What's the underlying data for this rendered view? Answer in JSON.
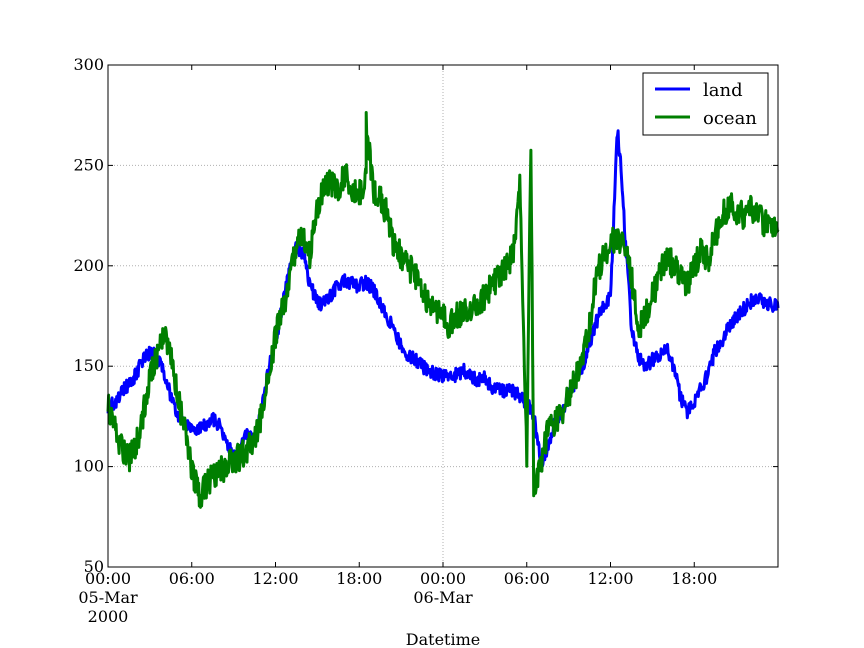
{
  "chart_data": {
    "type": "line",
    "title": "",
    "xlabel": "Datetime",
    "ylabel": "",
    "ylim": [
      50,
      300
    ],
    "yticks": [
      50,
      100,
      150,
      200,
      250,
      300
    ],
    "xlim_hours": [
      0,
      48
    ],
    "x_unit": "hours since 2000-03-05 00:00",
    "xticks": [
      {
        "hour": 0,
        "lines": [
          "00:00",
          "05-Mar",
          "2000"
        ]
      },
      {
        "hour": 6,
        "lines": [
          "06:00"
        ]
      },
      {
        "hour": 12,
        "lines": [
          "12:00"
        ]
      },
      {
        "hour": 18,
        "lines": [
          "18:00"
        ]
      },
      {
        "hour": 24,
        "lines": [
          "00:00",
          "06-Mar"
        ]
      },
      {
        "hour": 30,
        "lines": [
          "06:00"
        ]
      },
      {
        "hour": 36,
        "lines": [
          "12:00"
        ]
      },
      {
        "hour": 42,
        "lines": [
          "18:00"
        ]
      }
    ],
    "grid": true,
    "legend_position": "top-right",
    "series": [
      {
        "name": "land",
        "color": "#0000ff",
        "x": [
          0,
          0.5,
          1,
          1.5,
          2,
          2.5,
          3,
          3.5,
          4,
          4.5,
          5,
          5.5,
          6,
          6.5,
          7,
          7.5,
          8,
          8.5,
          9,
          9.5,
          10,
          10.5,
          11,
          11.5,
          12,
          12.5,
          13,
          13.5,
          14,
          14.5,
          15,
          15.5,
          16,
          16.5,
          17,
          17.5,
          18,
          18.5,
          19,
          19.5,
          20,
          20.5,
          21,
          21.5,
          22,
          22.5,
          23,
          23.5,
          24,
          24.5,
          25,
          25.5,
          26,
          26.5,
          27,
          27.5,
          28,
          28.5,
          29,
          29.5,
          30,
          30.5,
          31,
          31.5,
          32,
          32.5,
          33,
          33.5,
          34,
          34.5,
          35,
          35.5,
          36,
          36.5,
          37,
          37.5,
          38,
          38.5,
          39,
          39.5,
          40,
          40.5,
          41,
          41.5,
          42,
          42.5,
          43,
          43.5,
          44,
          44.5,
          45,
          45.5,
          46,
          46.5,
          47,
          47.5,
          48
        ],
        "values": [
          130,
          132,
          138,
          141,
          146,
          153,
          157,
          155,
          147,
          135,
          125,
          122,
          118,
          118,
          121,
          124,
          120,
          112,
          106,
          108,
          118,
          112,
          128,
          148,
          162,
          180,
          197,
          210,
          205,
          190,
          182,
          181,
          186,
          190,
          193,
          191,
          190,
          192,
          188,
          182,
          175,
          168,
          160,
          155,
          153,
          150,
          148,
          146,
          145,
          144,
          146,
          148,
          145,
          143,
          144,
          140,
          138,
          137,
          138,
          135,
          132,
          126,
          102,
          108,
          122,
          128,
          135,
          142,
          150,
          160,
          172,
          180,
          185,
          268,
          220,
          170,
          155,
          150,
          153,
          155,
          160,
          150,
          135,
          127,
          132,
          140,
          146,
          158,
          162,
          170,
          175,
          178,
          182,
          183,
          182,
          181,
          179
        ],
        "x_extra": [
          36.8
        ],
        "values_extra": [
          245
        ]
      },
      {
        "name": "ocean",
        "color": "#007f00",
        "x": [
          0,
          0.5,
          1,
          1.5,
          2,
          2.5,
          3,
          3.5,
          4,
          4.5,
          5,
          5.5,
          6,
          6.5,
          7,
          7.5,
          8,
          8.5,
          9,
          9.5,
          10,
          10.5,
          11,
          11.5,
          12,
          12.5,
          13,
          13.5,
          14,
          14.5,
          15,
          15.5,
          16,
          16.5,
          17,
          17.5,
          18,
          18.5,
          19,
          19.5,
          20,
          20.5,
          21,
          21.5,
          22,
          22.5,
          23,
          23.5,
          24,
          24.5,
          25,
          25.5,
          26,
          26.5,
          27,
          27.5,
          28,
          28.5,
          29,
          29.5,
          30,
          30.5,
          31,
          31.5,
          32,
          32.5,
          33,
          33.5,
          34,
          34.5,
          35,
          35.5,
          36,
          36.5,
          37,
          37.5,
          38,
          38.5,
          39,
          39.5,
          40,
          40.5,
          41,
          41.5,
          42,
          42.5,
          43,
          43.5,
          44,
          44.5,
          45,
          45.5,
          46,
          46.5,
          47,
          47.5,
          48
        ],
        "values": [
          130,
          118,
          108,
          104,
          110,
          125,
          145,
          155,
          168,
          155,
          135,
          118,
          100,
          85,
          90,
          95,
          98,
          100,
          103,
          105,
          108,
          115,
          125,
          145,
          165,
          178,
          192,
          210,
          215,
          205,
          230,
          240,
          242,
          238,
          245,
          238,
          236,
          242,
          238,
          235,
          225,
          210,
          205,
          200,
          195,
          188,
          182,
          178,
          175,
          170,
          175,
          178,
          180,
          182,
          185,
          190,
          195,
          200,
          205,
          240,
          105,
          88,
          100,
          118,
          122,
          125,
          135,
          145,
          155,
          170,
          195,
          205,
          212,
          215,
          210,
          195,
          170,
          175,
          185,
          195,
          205,
          200,
          195,
          190,
          200,
          208,
          203,
          215,
          225,
          230,
          228,
          225,
          230,
          225,
          222,
          220,
          218
        ],
        "x_extra": [
          18.5,
          30.3
        ],
        "values_extra": [
          272,
          258
        ]
      }
    ]
  }
}
